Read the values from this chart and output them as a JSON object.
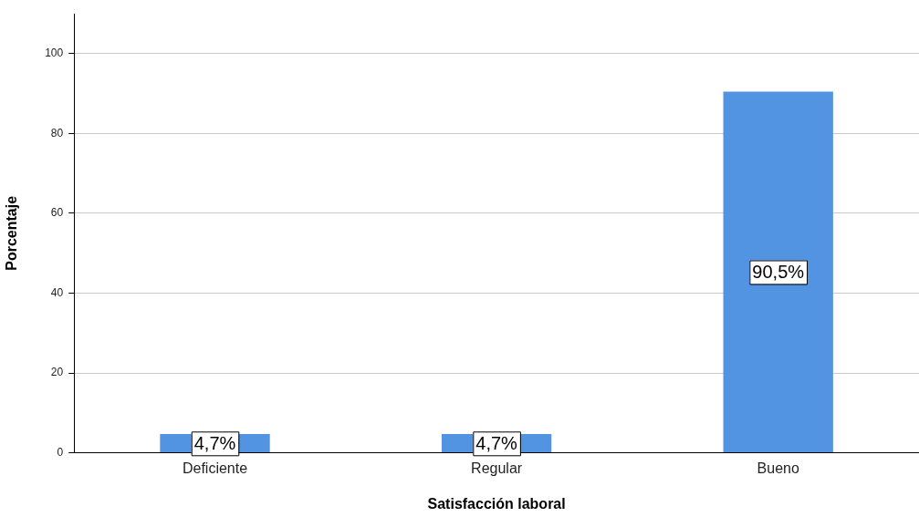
{
  "chart_data": {
    "type": "bar",
    "xlabel": "Satisfacción laboral",
    "ylabel": "Porcentaje",
    "categories": [
      "Deficiente",
      "Regular",
      "Bueno"
    ],
    "values": [
      4.7,
      4.7,
      90.5
    ],
    "value_labels": [
      "4,7%",
      "4,7%",
      "90,5%"
    ],
    "color": "#5294e2",
    "ylim": [
      0,
      110
    ],
    "yticks": [
      0,
      20,
      40,
      60,
      80,
      100
    ],
    "grid": "y",
    "legend": false
  }
}
